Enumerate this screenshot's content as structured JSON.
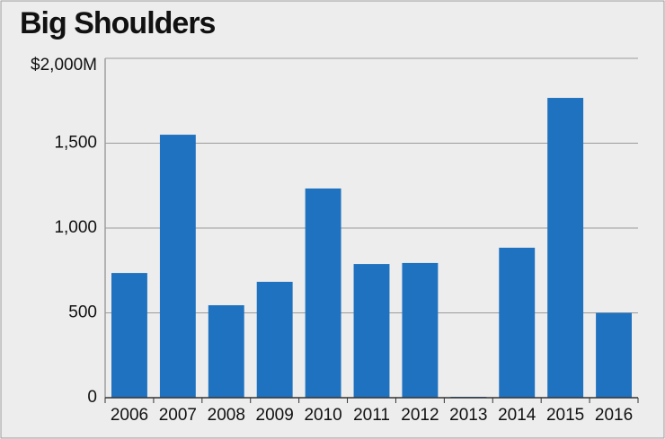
{
  "chart_data": {
    "type": "bar",
    "title": "Big Shoulders",
    "categories": [
      "2006",
      "2007",
      "2008",
      "2009",
      "2010",
      "2011",
      "2012",
      "2013",
      "2014",
      "2015",
      "2016"
    ],
    "values": [
      735,
      1550,
      545,
      683,
      1233,
      788,
      794,
      0,
      884,
      1767,
      500
    ],
    "color": "#1f72bf",
    "ylim": [
      0,
      2000
    ],
    "yticks": [
      0,
      {
        "value": 500,
        "label": "500"
      },
      {
        "value": 1000,
        "label": "1,000"
      },
      {
        "value": 1500,
        "label": "1,500"
      },
      {
        "value": 2000,
        "label": "$2,000M"
      }
    ],
    "grid": true
  }
}
